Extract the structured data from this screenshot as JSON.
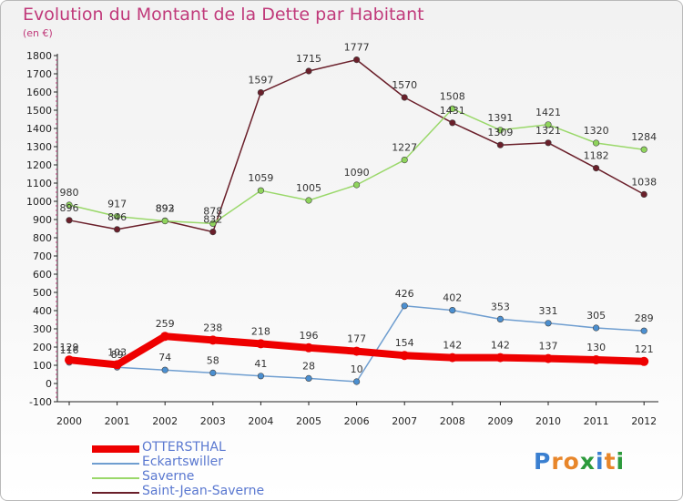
{
  "chart_title": "Evolution du Montant de la Dette par Habitant",
  "chart_unit": "(en €)",
  "logo": {
    "text": "Proxiti",
    "letters": [
      {
        "ch": "P",
        "color": "#3a7fd0"
      },
      {
        "ch": "r",
        "color": "#e8862a"
      },
      {
        "ch": "o",
        "color": "#e8862a"
      },
      {
        "ch": "x",
        "color": "#2c9a3c"
      },
      {
        "ch": "i",
        "color": "#3a7fd0"
      },
      {
        "ch": "t",
        "color": "#e8862a"
      },
      {
        "ch": "i",
        "color": "#2c9a3c"
      }
    ]
  },
  "chart_data": {
    "type": "line",
    "title": "Evolution du Montant de la Dette par Habitant",
    "subtitle": "(en €)",
    "x": [
      "2000",
      "2001",
      "2002",
      "2003",
      "2004",
      "2005",
      "2006",
      "2007",
      "2008",
      "2009",
      "2010",
      "2011",
      "2012"
    ],
    "ylim": [
      -100,
      1800
    ],
    "yticks": [
      -100,
      0,
      100,
      200,
      300,
      400,
      500,
      600,
      700,
      800,
      900,
      1000,
      1100,
      1200,
      1300,
      1400,
      1500,
      1600,
      1700,
      1800
    ],
    "grid": false,
    "legend_position": "bottom-left",
    "series": [
      {
        "name": "Saint-Jean-Saverne",
        "color": "#6a1f2a",
        "text_color": "#5a78d0",
        "marker": "#6a1f2a",
        "values": [
          896,
          846,
          893,
          832,
          1597,
          1715,
          1777,
          1570,
          1431,
          1309,
          1321,
          1182,
          1038
        ]
      },
      {
        "name": "Saverne",
        "color": "#9ad86a",
        "text_color": "#5a78d0",
        "marker": "#8fd45c",
        "values": [
          980,
          917,
          892,
          878,
          1059,
          1005,
          1090,
          1227,
          1508,
          1391,
          1421,
          1320,
          1284
        ]
      },
      {
        "name": "Eckartswiller",
        "color": "#6f9ed0",
        "text_color": "#5a78d0",
        "marker": "#4b8fd0",
        "values": [
          116,
          89,
          74,
          58,
          41,
          28,
          10,
          426,
          402,
          353,
          331,
          305,
          289
        ]
      },
      {
        "name": "OTTERSTHAL",
        "color": "#ee0000",
        "text_color": "#5a78d0",
        "marker": "#ee0000",
        "bold": true,
        "values": [
          129,
          103,
          259,
          238,
          218,
          196,
          177,
          154,
          142,
          142,
          137,
          130,
          121
        ]
      }
    ]
  }
}
